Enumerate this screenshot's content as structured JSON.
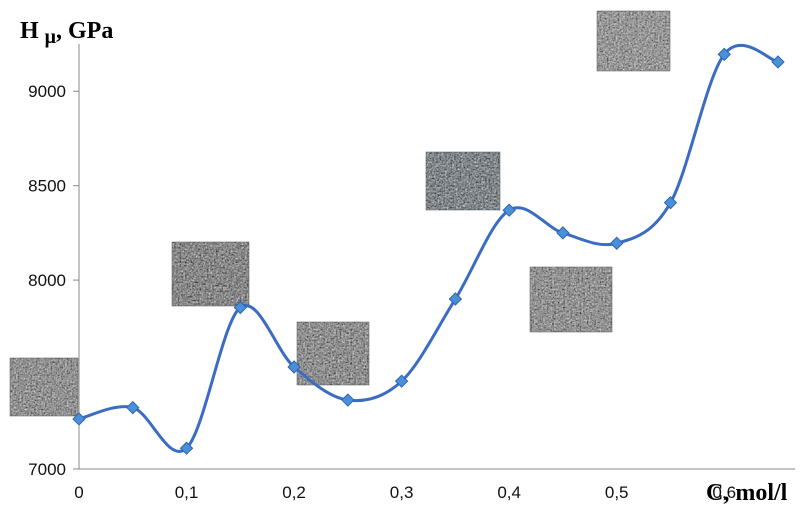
{
  "chart_data": {
    "type": "line",
    "ylabel": "H",
    "ylabel_sub": "μ",
    "ylabel_unit": ", GPa",
    "xlabel": "C, mol/l",
    "xlim": [
      0,
      0.65
    ],
    "ylim": [
      7000,
      9250
    ],
    "xticks": [
      "0",
      "0,1",
      "0,2",
      "0,3",
      "0,4",
      "0,5",
      "0,6"
    ],
    "xtick_values": [
      0,
      0.1,
      0.2,
      0.3,
      0.4,
      0.5,
      0.6
    ],
    "yticks": [
      "7000",
      "7500",
      "8000",
      "8500",
      "9000"
    ],
    "ytick_values": [
      7000,
      7500,
      8000,
      8500,
      9000
    ],
    "grid": false,
    "line_color": "#3b6cc4",
    "marker_color": "#4a90d9",
    "series": [
      {
        "x": [
          0,
          0.05,
          0.1,
          0.15,
          0.2,
          0.25,
          0.3,
          0.35,
          0.4,
          0.45,
          0.5,
          0.55,
          0.6,
          0.65
        ],
        "values": [
          7265,
          7325,
          7110,
          7855,
          7540,
          7365,
          7465,
          7900,
          8370,
          8250,
          8195,
          8410,
          9195,
          9155
        ],
        "marker": "diamond",
        "smooth": true
      }
    ],
    "micrographs": [
      {
        "x": 0.0
      },
      {
        "x": 0.15
      },
      {
        "x": 0.25
      },
      {
        "x": 0.4
      },
      {
        "x": 0.5
      },
      {
        "x": 0.6
      }
    ]
  }
}
